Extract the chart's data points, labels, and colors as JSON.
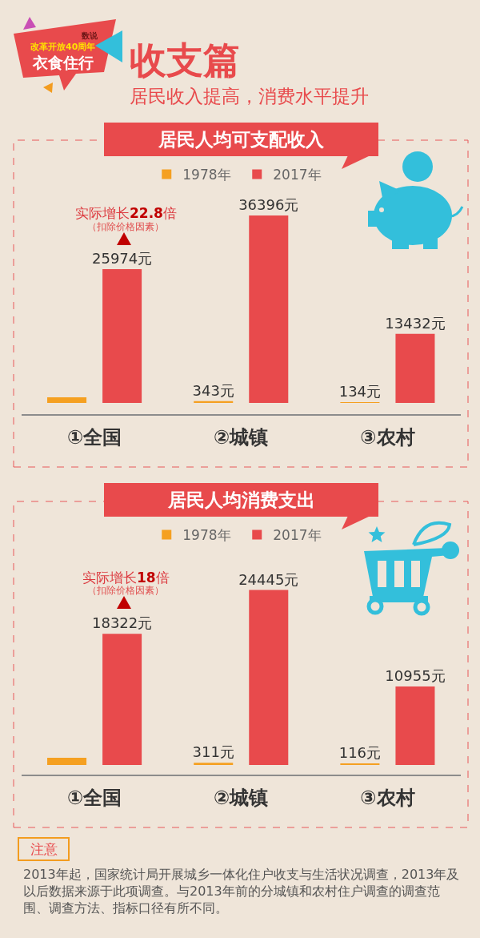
{
  "chart_data": [
    {
      "type": "other",
      "title": "收支篇",
      "subtitle": "居民收入提高，消费水平提升",
      "annotations": [
        "数说",
        "改革开放40周年",
        "衣食住行"
      ]
    },
    {
      "type": "bar",
      "title": "居民人均可支配收入",
      "categories": [
        "①全国",
        "②城镇",
        "③农村"
      ],
      "legend": "top",
      "series": [
        {
          "name": "1978年",
          "color": "#f5a021",
          "values": [
            1100,
            343,
            134
          ],
          "value_labels": [
            null,
            "343元",
            "134元"
          ]
        },
        {
          "name": "2017年",
          "color": "#e84a4c",
          "values": [
            25974,
            36396,
            13432
          ],
          "value_labels": [
            "25974元",
            "36396元",
            "13432元"
          ]
        }
      ],
      "annotations": [
        "实际增长22.8倍",
        "（扣除价格因素）"
      ]
    },
    {
      "type": "bar",
      "title": "居民人均消费支出",
      "categories": [
        "①全国",
        "②城镇",
        "③农村"
      ],
      "legend": "top",
      "series": [
        {
          "name": "1978年",
          "color": "#f5a021",
          "values": [
            1000,
            311,
            116
          ],
          "value_labels": [
            null,
            "311元",
            "116元"
          ]
        },
        {
          "name": "2017年",
          "color": "#e84a4c",
          "values": [
            18322,
            24445,
            10955
          ],
          "value_labels": [
            "18322元",
            "24445元",
            "10955元"
          ]
        }
      ],
      "annotations": [
        "实际增长18倍",
        "（扣除价格因素）",
        "注意",
        "2013年起，国家统计局开展城乡一体化住户收支与生活状况调查，2013年及以后数据来源于此项调查。与2013年前的分城镇和农村住户调查的调查范围、调查方法、指标口径有所不同。"
      ]
    }
  ]
}
